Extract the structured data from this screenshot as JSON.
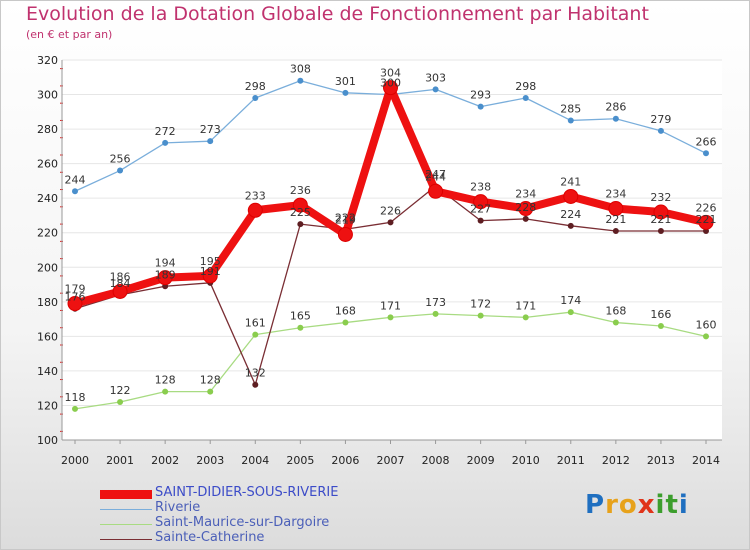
{
  "title": "Evolution de la Dotation Globale de Fonctionnement par Habitant",
  "subtitle": "(en € et par an)",
  "logo": {
    "text": "Proxiti",
    "letters": [
      "P",
      "r",
      "o",
      "x",
      "i",
      "t",
      "i"
    ],
    "colors": [
      "#1f6fc0",
      "#e7a21b",
      "#e7a21b",
      "#e0341a",
      "#3c9e2d",
      "#3c9e2d",
      "#1f6fc0"
    ]
  },
  "colors": {
    "label": "#333333",
    "axis_text": "#222222",
    "grid": "#e6e6e6",
    "plot_bg": "#ffffff"
  },
  "chart_data": {
    "type": "line",
    "title": "Evolution de la Dotation Globale de Fonctionnement par Habitant",
    "subtitle": "(en € et par an)",
    "xlabel": "",
    "ylabel": "",
    "categories": [
      "2000",
      "2001",
      "2002",
      "2003",
      "2004",
      "2005",
      "2006",
      "2007",
      "2008",
      "2009",
      "2010",
      "2011",
      "2012",
      "2013",
      "2014"
    ],
    "ylim": [
      100,
      320
    ],
    "yticks": [
      100,
      120,
      140,
      160,
      180,
      200,
      220,
      240,
      260,
      280,
      300,
      320
    ],
    "grid": true,
    "legend_position": "bottom",
    "series": [
      {
        "name": "SAINT-DIDIER-SOUS-RIVERIE",
        "color": "#ee1111",
        "marker": "#ee1111",
        "labelColor": "#3a3a3a",
        "values": [
          179,
          186,
          194,
          195,
          233,
          236,
          219,
          304,
          244,
          238,
          234,
          241,
          234,
          232,
          226
        ]
      },
      {
        "name": "Riverie",
        "color": "#7aaedb",
        "marker": "#4a8fcc",
        "labelColor": "#333333",
        "values": [
          244,
          256,
          272,
          273,
          298,
          308,
          301,
          300,
          303,
          293,
          298,
          285,
          286,
          279,
          266
        ]
      },
      {
        "name": "Saint-Maurice-sur-Dargoire",
        "color": "#a8db82",
        "marker": "#8acd4e",
        "labelColor": "#333333",
        "values": [
          118,
          122,
          128,
          128,
          161,
          165,
          168,
          171,
          173,
          172,
          171,
          174,
          168,
          166,
          160
        ]
      },
      {
        "name": "Sainte-Catherine",
        "color": "#7a2e34",
        "marker": "#5e1e22",
        "labelColor": "#333333",
        "values": [
          176,
          184,
          189,
          191,
          132,
          225,
          222,
          226,
          247,
          227,
          228,
          224,
          221,
          221,
          221
        ]
      }
    ]
  }
}
